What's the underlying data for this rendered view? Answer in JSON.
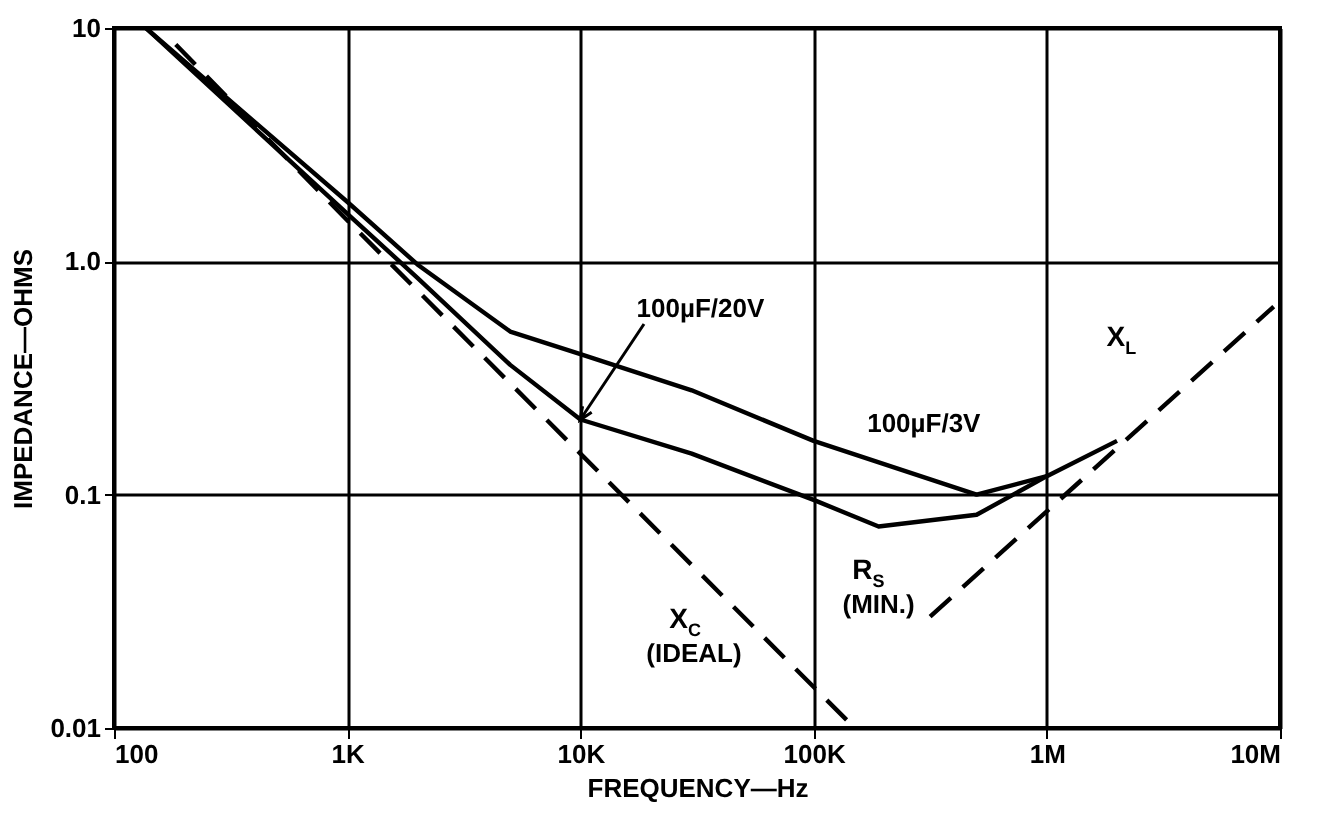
{
  "chart_data": {
    "type": "line",
    "xlabel": "FREQUENCY—Hz",
    "ylabel": "IMPEDANCE—OHMS",
    "log": "xy",
    "grid": true,
    "xlim": [
      100,
      10000000
    ],
    "ylim": [
      0.01,
      10
    ],
    "xticks": [
      100,
      {
        "value": 1000,
        "label": "1K"
      },
      {
        "value": 10000,
        "label": "10K"
      },
      {
        "value": 100000,
        "label": "100K"
      },
      {
        "value": 1000000,
        "label": "1M"
      },
      {
        "value": 10000000,
        "label": "10M"
      }
    ],
    "yticks": [
      0.01,
      0.1,
      {
        "value": 1,
        "label": "1.0"
      },
      10
    ],
    "series": [
      {
        "color": "#000000",
        "line_style": "solid",
        "x": [
          137,
          1000,
          2000,
          5000,
          10000,
          30000,
          100000,
          500000,
          1000000,
          2000000
        ],
        "values": [
          10,
          1.8,
          0.97,
          0.5,
          0.4,
          0.28,
          0.17,
          0.1,
          0.12,
          0.17
        ]
      },
      {
        "color": "#000000",
        "line_style": "solid",
        "x": [
          137,
          1000,
          2000,
          5000,
          10000,
          30000,
          100000,
          190000,
          500000,
          1000000
        ],
        "values": [
          10,
          1.6,
          0.85,
          0.36,
          0.21,
          0.15,
          0.095,
          0.073,
          0.082,
          0.12
        ]
      },
      {
        "color": "#000000",
        "line_style": "dashed",
        "x": [
          184,
          1000,
          10000,
          150000
        ],
        "values": [
          8.5,
          1.5,
          0.15,
          0.01
        ]
      },
      {
        "color": "#000000",
        "line_style": "dashed",
        "x": [
          316000,
          9400000
        ],
        "values": [
          0.03,
          0.64
        ]
      }
    ],
    "annotations": [
      {
        "text": "100µF/3V",
        "x": 200000,
        "y": 0.13
      },
      {
        "text": "100µF/20V",
        "x": 10000,
        "y": 0.21
      },
      "X$_{C}$ (IDEAL)",
      {
        "text": "R$_{S}$ (MIN.)",
        "x": 190000,
        "y": 0.073
      },
      {
        "text": "X$_{L}$",
        "x": 4000000,
        "y": 0.35
      }
    ]
  }
}
